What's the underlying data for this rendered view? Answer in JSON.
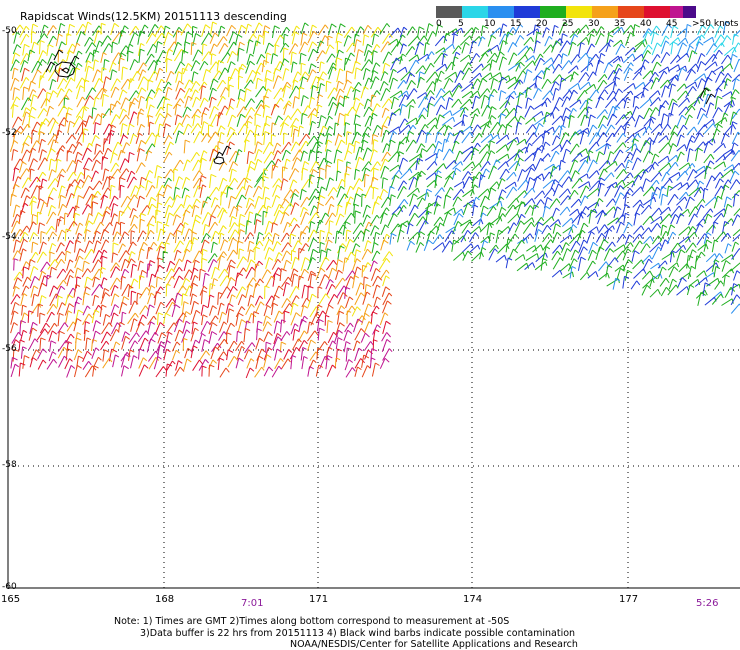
{
  "title": "Rapidscat Winds(12.5KM) 20151113 descending",
  "legend": {
    "labels": [
      "0",
      "5",
      "10",
      "15",
      "20",
      "25",
      "30",
      "35",
      "40",
      "45",
      ">50 knots"
    ],
    "colors": [
      "#6a6a6a",
      "#1fd9e6",
      "#1f8fef",
      "#1f3ad9",
      "#22b322",
      "#f0e40a",
      "#f6a21a",
      "#e8441a",
      "#e0102a",
      "#c0108a",
      "#4b0a8a"
    ]
  },
  "axes": {
    "lat_labels": [
      "-50",
      "-52",
      "-54",
      "-56",
      "-58",
      "-60"
    ],
    "lon_labels": [
      "165",
      "168",
      "171",
      "174",
      "177"
    ]
  },
  "times": {
    "left": "7:01",
    "right": "5:26"
  },
  "notes": {
    "line1": "Note: 1) Times are GMT 2)Times along bottom correspond to measurement at -50S",
    "line2": "3)Data buffer is 22 hrs from 20151113 4) Black wind barbs indicate possible contamination",
    "line3": "NOAA/NESDIS/Center for Satellite Applications and Research"
  }
}
